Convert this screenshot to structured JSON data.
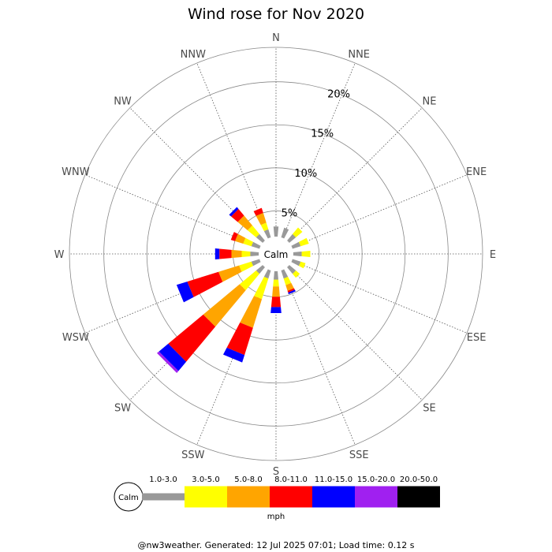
{
  "chart_data": {
    "type": "windrose",
    "title": "Wind rose for Nov 2020",
    "directions": [
      "N",
      "NNE",
      "NE",
      "ENE",
      "E",
      "ESE",
      "SE",
      "SSE",
      "S",
      "SSW",
      "SW",
      "WSW",
      "W",
      "WNW",
      "NW",
      "NNW"
    ],
    "ring_labels": [
      "5%",
      "10%",
      "15%",
      "20%"
    ],
    "ring_values": [
      5,
      10,
      15,
      20
    ],
    "max_percent": 24,
    "calm_label": "Calm",
    "calm_percent": 2.4,
    "bins": [
      {
        "label": "1.0-3.0",
        "color": "#999999"
      },
      {
        "label": "3.0-5.0",
        "color": "#ffff00"
      },
      {
        "label": "5.0-8.0",
        "color": "#ffa500"
      },
      {
        "label": "8.0-11.0",
        "color": "#ff0000"
      },
      {
        "label": "11.0-15.0",
        "color": "#0000ff"
      },
      {
        "label": "15.0-20.0",
        "color": "#a020f0"
      },
      {
        "label": "20.0-50.0",
        "color": "#000000"
      }
    ],
    "unit": "mph",
    "cumulative_percent": [
      [
        3.2,
        3.2,
        3.2,
        3.2,
        3.2,
        3.2,
        3.2
      ],
      [
        3.2,
        3.2,
        3.2,
        3.2,
        3.2,
        3.2,
        3.2
      ],
      [
        3.0,
        4.0,
        4.0,
        4.0,
        4.0,
        4.0,
        4.0
      ],
      [
        3.0,
        4.0,
        4.0,
        4.0,
        4.0,
        4.0,
        4.0
      ],
      [
        3.0,
        4.0,
        4.0,
        4.0,
        4.0,
        4.0,
        4.0
      ],
      [
        3.0,
        3.6,
        3.6,
        3.6,
        3.6,
        3.6,
        3.6
      ],
      [
        3.0,
        3.6,
        3.6,
        3.6,
        3.6,
        3.6,
        3.6
      ],
      [
        3.0,
        3.8,
        4.5,
        4.7,
        4.9,
        4.9,
        4.9
      ],
      [
        3.0,
        3.8,
        5.0,
        6.2,
        6.9,
        6.9,
        6.9
      ],
      [
        3.0,
        5.5,
        9.0,
        12.3,
        13.2,
        13.2,
        13.2
      ],
      [
        3.0,
        5.5,
        11.0,
        16.3,
        17.7,
        18.0,
        18.0
      ],
      [
        3.0,
        4.5,
        7.0,
        10.8,
        12.1,
        12.1,
        12.1
      ],
      [
        3.0,
        4.0,
        5.2,
        6.6,
        7.1,
        7.1,
        7.1
      ],
      [
        3.0,
        4.0,
        5.0,
        5.5,
        5.5,
        5.5,
        5.5
      ],
      [
        3.0,
        4.3,
        5.8,
        6.8,
        7.1,
        7.1,
        7.1
      ],
      [
        3.0,
        3.8,
        5.0,
        5.6,
        5.6,
        5.6,
        5.6
      ]
    ]
  },
  "footer": "@nw3weather. Generated: 12 Jul 2025 07:01; Load time: 0.12 s"
}
